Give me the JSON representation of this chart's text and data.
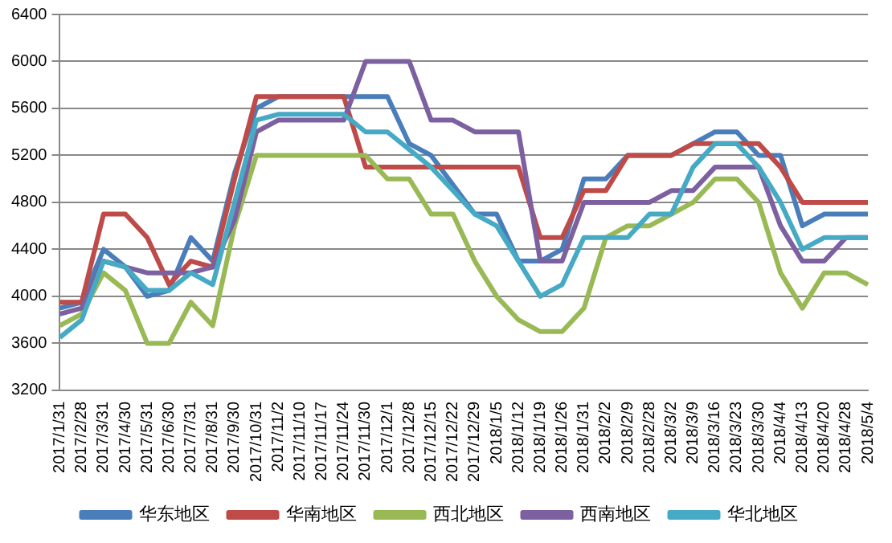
{
  "chart_data": {
    "type": "line",
    "categories": [
      "2017/1/31",
      "2017/2/28",
      "2017/3/31",
      "2017/4/30",
      "2017/5/31",
      "2017/6/30",
      "2017/7/31",
      "2017/8/31",
      "2017/9/30",
      "2017/10/31",
      "2017/11/2",
      "2017/11/10",
      "2017/11/17",
      "2017/11/24",
      "2017/11/30",
      "2017/12/1",
      "2017/12/8",
      "2017/12/15",
      "2017/12/22",
      "2017/12/29",
      "2018/1/5",
      "2018/1/12",
      "2018/1/19",
      "2018/1/26",
      "2018/1/31",
      "2018/2/2",
      "2018/2/9",
      "2018/2/28",
      "2018/3/2",
      "2018/3/9",
      "2018/3/16",
      "2018/3/23",
      "2018/3/30",
      "2018/4/4",
      "2018/4/13",
      "2018/4/20",
      "2018/4/28",
      "2018/5/4"
    ],
    "series": [
      {
        "name": "华东地区",
        "color": "#4a7ebb",
        "values": [
          3900,
          3950,
          4400,
          4250,
          4000,
          4050,
          4500,
          4300,
          5050,
          5600,
          5700,
          5700,
          5700,
          5700,
          5700,
          5700,
          5300,
          5200,
          4950,
          4700,
          4700,
          4300,
          4300,
          4400,
          5000,
          5000,
          5200,
          5200,
          5200,
          5300,
          5400,
          5400,
          5200,
          5200,
          4600,
          4700,
          4700,
          4700
        ]
      },
      {
        "name": "华南地区",
        "color": "#be4b48",
        "values": [
          3950,
          3950,
          4700,
          4700,
          4500,
          4100,
          4300,
          4250,
          5000,
          5700,
          5700,
          5700,
          5700,
          5700,
          5100,
          5100,
          5100,
          5100,
          5100,
          5100,
          5100,
          5100,
          4500,
          4500,
          4900,
          4900,
          5200,
          5200,
          5200,
          5300,
          5300,
          5300,
          5300,
          5100,
          4800,
          4800,
          4800,
          4800
        ]
      },
      {
        "name": "西北地区",
        "color": "#98b954",
        "values": [
          3750,
          3850,
          4200,
          4050,
          3600,
          3600,
          3950,
          3750,
          4600,
          5200,
          5200,
          5200,
          5200,
          5200,
          5200,
          5000,
          5000,
          4700,
          4700,
          4300,
          4000,
          3800,
          3700,
          3700,
          3900,
          4500,
          4600,
          4600,
          4700,
          4800,
          5000,
          5000,
          4800,
          4200,
          3900,
          4200,
          4200,
          4100
        ]
      },
      {
        "name": "西南地区",
        "color": "#7d60a0",
        "values": [
          3850,
          3900,
          4300,
          4250,
          4200,
          4200,
          4200,
          4250,
          4650,
          5400,
          5500,
          5500,
          5500,
          5500,
          6000,
          6000,
          6000,
          5500,
          5500,
          5400,
          5400,
          5400,
          4300,
          4300,
          4800,
          4800,
          4800,
          4800,
          4900,
          4900,
          5100,
          5100,
          5100,
          4600,
          4300,
          4300,
          4500,
          4500
        ]
      },
      {
        "name": "华北地区",
        "color": "#46aac5",
        "values": [
          3650,
          3800,
          4300,
          4250,
          4050,
          4050,
          4200,
          4100,
          4800,
          5500,
          5550,
          5550,
          5550,
          5550,
          5400,
          5400,
          5250,
          5100,
          4900,
          4700,
          4600,
          4300,
          4000,
          4100,
          4500,
          4500,
          4500,
          4700,
          4700,
          5100,
          5300,
          5300,
          5100,
          4800,
          4400,
          4500,
          4500,
          4500
        ]
      }
    ],
    "ylim": [
      3200,
      6400
    ],
    "yticks": [
      3200,
      3600,
      4000,
      4400,
      4800,
      5200,
      5600,
      6000,
      6400
    ],
    "grid": "y",
    "legend": "bottom",
    "marker": "none",
    "line_style": "solid"
  }
}
